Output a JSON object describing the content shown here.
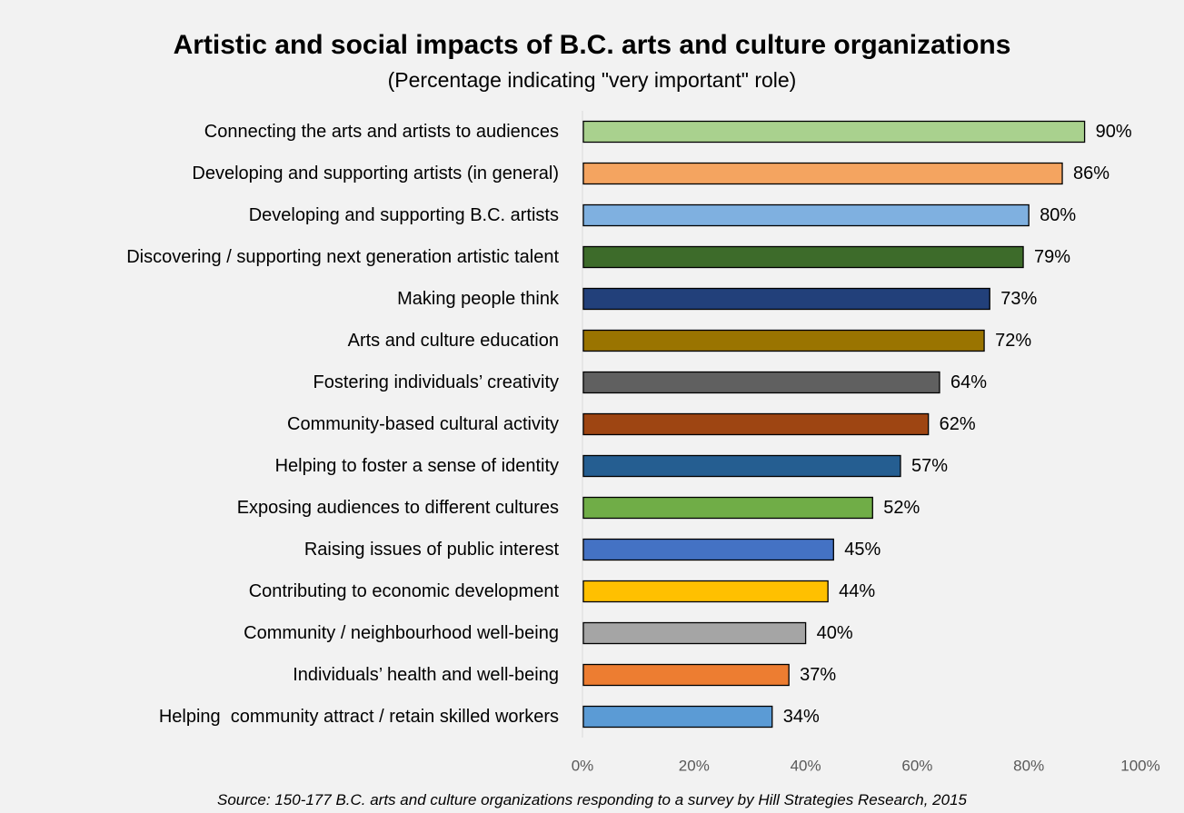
{
  "chart_data": {
    "type": "bar",
    "orientation": "horizontal",
    "title": "Artistic and social impacts of B.C. arts and culture organizations",
    "subtitle": "(Percentage indicating \"very important\" role)",
    "source": "Source: 150-177 B.C. arts and culture organizations responding to a survey by Hill Strategies Research, 2015",
    "xlim": [
      0,
      100
    ],
    "x_ticks": [
      "0%",
      "20%",
      "40%",
      "60%",
      "80%",
      "100%"
    ],
    "x_tick_values": [
      0,
      20,
      40,
      60,
      80,
      100
    ],
    "grid": false,
    "legend": "none",
    "categories": [
      "Connecting the arts and artists to audiences",
      "Developing and supporting artists (in general)",
      "Developing and supporting B.C. artists",
      "Discovering / supporting next generation artistic talent",
      "Making people think",
      "Arts and culture education",
      "Fostering individuals’ creativity",
      "Community-based cultural activity",
      "Helping to foster a sense of identity",
      "Exposing audiences to different cultures",
      "Raising issues of public interest",
      "Contributing to economic development",
      "Community / neighbourhood well-being",
      "Individuals’ health and well-being",
      "Helping  community attract / retain skilled workers"
    ],
    "values": [
      90,
      86,
      80,
      79,
      73,
      72,
      64,
      62,
      57,
      52,
      45,
      44,
      40,
      37,
      34
    ],
    "value_labels": [
      "90%",
      "86%",
      "80%",
      "79%",
      "73%",
      "72%",
      "64%",
      "62%",
      "57%",
      "52%",
      "45%",
      "44%",
      "40%",
      "37%",
      "34%"
    ],
    "bar_colors": [
      "#a9d18e",
      "#f4a460",
      "#7fb0e0",
      "#3d6b2a",
      "#22407a",
      "#9a7400",
      "#606060",
      "#9e4512",
      "#255e91",
      "#70ad47",
      "#4472c4",
      "#ffc000",
      "#a5a5a5",
      "#ed7d31",
      "#5b9bd5"
    ]
  }
}
